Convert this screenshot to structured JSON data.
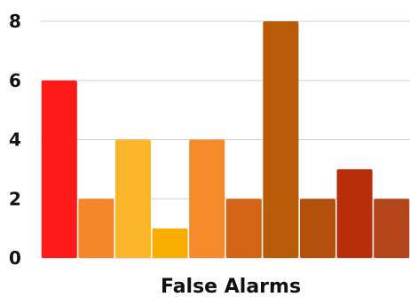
{
  "chart_data": {
    "type": "bar",
    "title": "",
    "xlabel": "False Alarms",
    "ylabel": "",
    "ylim": [
      0,
      8
    ],
    "yticks": [
      0,
      2,
      4,
      6,
      8
    ],
    "grid": true,
    "legend": "none",
    "values": [
      6,
      2,
      4,
      1,
      4,
      2,
      8,
      2,
      3,
      2
    ],
    "colors": [
      "#ff1a1a",
      "#f4872a",
      "#fcb62a",
      "#f8ad00",
      "#f48a2a",
      "#d46516",
      "#b85c0a",
      "#b3500c",
      "#b82e0c",
      "#b5461c"
    ]
  }
}
